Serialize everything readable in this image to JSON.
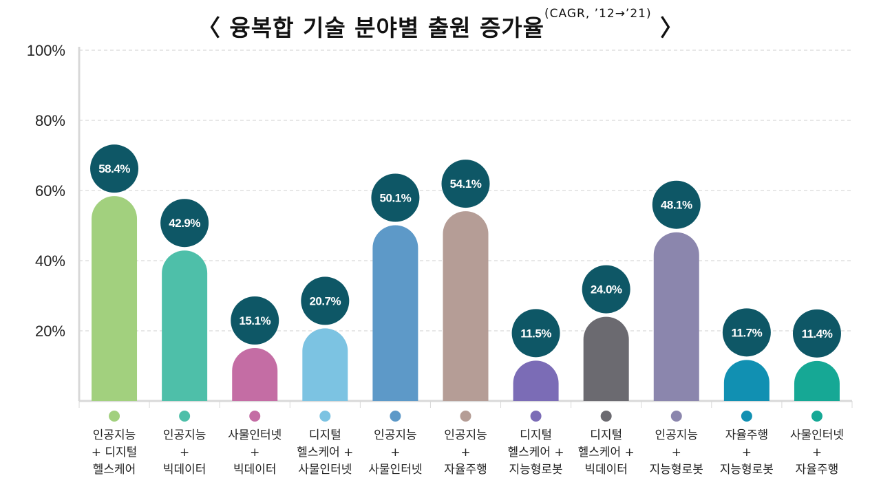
{
  "title": {
    "open": "〈",
    "main": "융복합 기술 분야별 출원 증가율",
    "sub": "(CAGR, ’12→’21)",
    "close": "〉"
  },
  "chart_data": {
    "type": "bar",
    "ylim": [
      0,
      100
    ],
    "yticks": [
      "20%",
      "40%",
      "60%",
      "80%",
      "100%"
    ],
    "ytick_values": [
      20,
      40,
      60,
      80,
      100
    ],
    "grid": true,
    "label_circle_color": "#0e5766",
    "categories": [
      "인공지능\n+ 디지털\n헬스케어",
      "인공지능\n+\n빅데이터",
      "사물인터넷\n+\n빅데이터",
      "디지털\n헬스케어 +\n사물인터넷",
      "인공지능\n+\n사물인터넷",
      "인공지능\n+\n자율주행",
      "디지털\n헬스케어 +\n지능형로봇",
      "디지털\n헬스케어 +\n빅데이터",
      "인공지능\n+\n지능형로봇",
      "자율주행\n+\n지능형로봇",
      "사물인터넷\n+\n자율주행"
    ],
    "values": [
      58.4,
      42.9,
      15.1,
      20.7,
      50.1,
      54.1,
      11.5,
      24.0,
      48.1,
      11.7,
      11.4
    ],
    "data_labels": [
      "58.4%",
      "42.9%",
      "15.1%",
      "20.7%",
      "50.1%",
      "54.1%",
      "11.5%",
      "24.0%",
      "48.1%",
      "11.7%",
      "11.4%"
    ],
    "colors": [
      "#a2d07e",
      "#4ebfa9",
      "#c46da4",
      "#7cc3e2",
      "#5d99c8",
      "#b59d96",
      "#7b6cb6",
      "#6b6a70",
      "#8b86ad",
      "#1190b2",
      "#16a895"
    ]
  }
}
